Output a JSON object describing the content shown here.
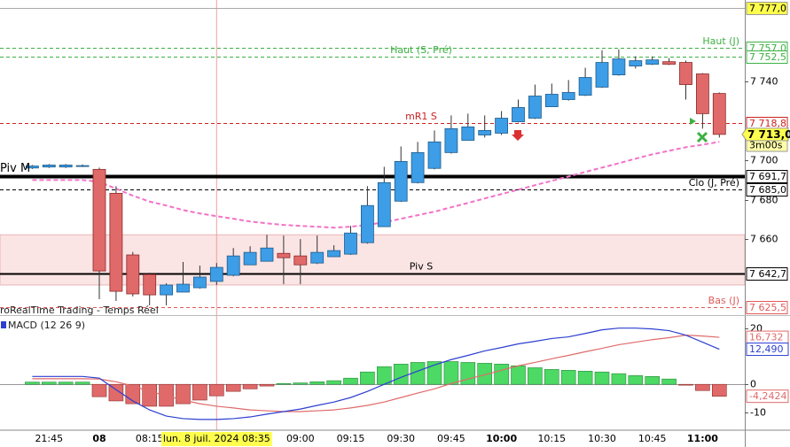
{
  "chart_data": [
    {
      "type": "candlestick",
      "categories": [
        null,
        "21:45",
        null,
        null,
        "08",
        null,
        null,
        "08:15",
        null,
        null,
        null,
        "lun. 8 juil. 2024 08:35",
        null,
        null,
        null,
        null,
        "09:00",
        null,
        null,
        "09:15",
        null,
        null,
        "09:30",
        null,
        null,
        "09:45",
        null,
        null,
        "10:00",
        null,
        null,
        "10:15",
        null,
        null,
        "10:30",
        null,
        null,
        "10:45",
        null,
        null,
        "11:00",
        null
      ],
      "bold_ticks": [
        4,
        28,
        40
      ],
      "crosshair_index": 11,
      "open": [
        7696.0,
        7696.5,
        7696.5,
        7697.0,
        7695.3,
        7683.2,
        7652.0,
        7642.1,
        7631.8,
        7633.2,
        7635.4,
        7638.6,
        7641.7,
        7647.0,
        7648.8,
        7652.8,
        7651.5,
        7647.9,
        7651.1,
        7652.4,
        7658.2,
        7666.3,
        7679.2,
        7688.6,
        7695.8,
        7703.8,
        7710.0,
        7712.7,
        7713.6,
        7719.4,
        7721.2,
        7727.0,
        7730.6,
        7732.8,
        7736.9,
        7743.1,
        7747.6,
        7748.5,
        7749.8,
        7749.4,
        7743.6,
        7733.7
      ],
      "high": [
        7697.5,
        7698.0,
        7698.0,
        7697.8,
        7696.2,
        7686.8,
        7653.5,
        7643.0,
        7637.7,
        7648.4,
        7646.6,
        7647.9,
        7655.5,
        7656.4,
        7662.2,
        7661.8,
        7660.0,
        7661.8,
        7656.9,
        7666.7,
        7686.8,
        7696.6,
        7706.9,
        7709.2,
        7715.0,
        7722.6,
        7723.5,
        7722.6,
        7724.8,
        7730.6,
        7738.2,
        7738.7,
        7740.5,
        7746.7,
        7755.6,
        7756.0,
        7752.5,
        7752.5,
        7751.6,
        7750.3,
        7744.0,
        7734.2
      ],
      "low": [
        7695.5,
        7696.0,
        7696.0,
        7696.5,
        7629.6,
        7628.7,
        7631.0,
        7626.5,
        7626.5,
        7633.2,
        7634.9,
        7636.8,
        7641.2,
        7647.0,
        7648.8,
        7637.2,
        7637.2,
        7647.4,
        7651.1,
        7652.0,
        7657.7,
        7666.3,
        7678.8,
        7688.2,
        7695.3,
        7703.3,
        7710.0,
        7711.4,
        7712.7,
        7719.0,
        7720.8,
        7727.0,
        7730.1,
        7732.4,
        7736.5,
        7742.7,
        7746.3,
        7748.1,
        7748.1,
        7730.6,
        7715.9,
        7711.4
      ],
      "close": [
        7697.0,
        7697.5,
        7697.5,
        7697.2,
        7643.9,
        7633.6,
        7632.3,
        7631.8,
        7636.8,
        7637.2,
        7640.8,
        7645.7,
        7651.5,
        7653.3,
        7655.5,
        7650.6,
        7647.0,
        7653.3,
        7654.2,
        7663.1,
        7677.0,
        7688.6,
        7699.3,
        7703.8,
        7709.2,
        7715.9,
        7716.8,
        7715.0,
        7721.2,
        7726.6,
        7732.4,
        7733.3,
        7734.2,
        7741.8,
        7749.4,
        7751.2,
        7750.3,
        7750.7,
        7748.5,
        7738.2,
        7723.5,
        7713.0
      ],
      "up_color": "#3d9de6",
      "down_color": "#e06a6a",
      "ylim": [
        7622,
        7781
      ],
      "yticks": [
        {
          "value": 7660,
          "label": "7 660"
        },
        {
          "value": 7680,
          "label": "7 680"
        },
        {
          "value": 7700,
          "label": "7 700"
        },
        {
          "value": 7740,
          "label": "7 740"
        }
      ],
      "levels": [
        {
          "value": 7777.0,
          "value_label": "7 777,0",
          "color": "#aaaaaa",
          "style": "solid",
          "box": "#ffff4d"
        },
        {
          "label": "Haut (J)",
          "value": 7757.0,
          "value_label": "7 757,0",
          "color": "#3cb043",
          "style": "dashed",
          "label_pos": "right"
        },
        {
          "label": "Haut (S, Pré)",
          "value": 7752.5,
          "value_label": "7 752,5",
          "color": "#3cb043",
          "style": "dashed",
          "label_pos": "center"
        },
        {
          "label": "mR1 S",
          "value": 7718.8,
          "value_label": "7 718,8",
          "color": "#cc2222",
          "style": "dashed",
          "label_pos": "center"
        },
        {
          "label": "Piv M",
          "value": 7691.7,
          "value_label": "7 691,7",
          "color": "#000000",
          "style": "solid",
          "width": 4,
          "label_pos": "left"
        },
        {
          "label": "Clo (J, Pré)",
          "value": 7685.0,
          "value_label": "7 685,0",
          "color": "#000000",
          "style": "dashed",
          "label_pos": "right"
        },
        {
          "label": "Piv S",
          "value": 7642.7,
          "value_label": "7 642,7",
          "color": "#000000",
          "style": "solid",
          "width": 2,
          "label_pos": "center"
        },
        {
          "label": "Bas (J)",
          "value": 7625.5,
          "value_label": "7 625,5",
          "color": "#e05a5a",
          "style": "dashed",
          "label_pos": "right"
        }
      ],
      "zone": [
        7636.8,
        7662.2
      ],
      "zone_color": "#fbe4e4",
      "moving_average": {
        "color": "#f272c8",
        "values": [
          7689.9,
          7689.9,
          7689.9,
          7689.9,
          7689.0,
          7685.5,
          7682.0,
          7679.0,
          7677.0,
          7674.7,
          7673.0,
          7671.6,
          7670.3,
          7668.9,
          7668.0,
          7667.2,
          7666.7,
          7666.3,
          7665.8,
          7666.3,
          7667.2,
          7668.5,
          7670.3,
          7672.1,
          7673.9,
          7676.1,
          7678.3,
          7680.6,
          7682.8,
          7685.0,
          7687.3,
          7689.5,
          7691.7,
          7694.0,
          7696.2,
          7698.4,
          7700.7,
          7702.9,
          7704.7,
          7706.5,
          7707.8,
          7709.2
        ]
      },
      "current_price": {
        "value": 7713.0,
        "label": "7 713,0"
      },
      "countdown": "3m00s",
      "watermark": "roRealTime Trading - Temps Réel"
    },
    {
      "type": "macd",
      "title": "MACD (12 26 9)",
      "ylim": [
        -16,
        24
      ],
      "yticks": [
        -10,
        0,
        20
      ],
      "histogram": {
        "positive_color": "#4cd964",
        "negative_color": "#e06a6a",
        "last_label": "-4,2424",
        "values": [
          0.8,
          0.8,
          0.8,
          0.8,
          -4.4,
          -5.9,
          -6.9,
          -7.8,
          -7.8,
          -6.9,
          -5.6,
          -4.1,
          -2.5,
          -1.6,
          -0.6,
          0.3,
          0.5,
          0.9,
          1.3,
          2.2,
          4.4,
          6.3,
          7.2,
          7.8,
          8.1,
          8.1,
          7.8,
          7.5,
          7.2,
          6.6,
          5.9,
          5.3,
          5.0,
          4.7,
          4.4,
          3.8,
          3.1,
          2.8,
          1.9,
          -0.3,
          -2.2,
          -4.2424
        ]
      },
      "macd": {
        "color": "#2c3fd0",
        "last_label": "12,490",
        "values": [
          2.8,
          2.8,
          2.8,
          2.8,
          2.2,
          -1.9,
          -5.9,
          -9.1,
          -11.3,
          -12.2,
          -12.5,
          -12.5,
          -12.2,
          -11.6,
          -10.6,
          -9.7,
          -8.8,
          -7.5,
          -6.3,
          -4.7,
          -2.5,
          0,
          2.5,
          4.7,
          6.9,
          8.8,
          10.3,
          11.9,
          13.1,
          14.4,
          15.3,
          16.3,
          16.9,
          18.1,
          19.4,
          20.0,
          20.0,
          19.7,
          19.1,
          17.5,
          15.0,
          12.49
        ]
      },
      "signal": {
        "color": "#e06a6a",
        "last_label": "16,732",
        "values": [
          2.0,
          2.0,
          2.0,
          2.0,
          1.9,
          0.9,
          -0.6,
          -2.5,
          -4.1,
          -5.6,
          -6.9,
          -7.8,
          -8.4,
          -9.1,
          -9.4,
          -9.7,
          -9.7,
          -9.4,
          -9.1,
          -8.4,
          -7.5,
          -6.3,
          -4.7,
          -3.1,
          -1.6,
          0.3,
          1.9,
          3.4,
          5.0,
          6.6,
          7.8,
          9.1,
          10.3,
          11.6,
          12.8,
          14.1,
          15.0,
          15.9,
          16.6,
          17.5,
          17.2,
          16.732
        ]
      }
    }
  ]
}
